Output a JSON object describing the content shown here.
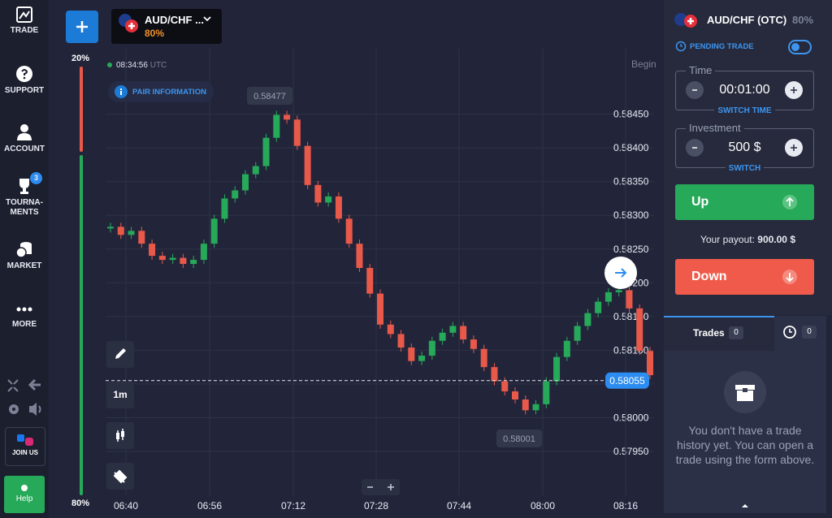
{
  "sidebar": {
    "items": [
      {
        "label": "TRADE"
      },
      {
        "label": "SUPPORT"
      },
      {
        "label": "ACCOUNT"
      },
      {
        "label": "TOURNA-MENTS",
        "badge": "3"
      },
      {
        "label": "MARKET"
      },
      {
        "label": "MORE"
      }
    ],
    "join": "JOIN US",
    "help": "Help"
  },
  "header": {
    "pair": "AUD/CHF ...",
    "payout": "80%",
    "time": "08:34:56",
    "timezone": "UTC",
    "pair_info": "PAIR INFORMATION",
    "begin": "Begin"
  },
  "sentiment": {
    "sell": "20%",
    "buy": "80%"
  },
  "chart_data": {
    "type": "candlestick",
    "series": [
      {
        "values": [
          0.58283,
          0.58271,
          0.58277,
          0.58258,
          0.5824,
          0.58234,
          0.58237,
          0.58228,
          0.58234,
          0.58258,
          0.58295,
          0.58325,
          0.58337,
          0.58361,
          0.58373,
          0.58415,
          0.58449,
          0.58442,
          0.58403,
          0.58345,
          0.58319,
          0.58328,
          0.58295,
          0.58258,
          0.58222,
          0.58184,
          0.58138,
          0.58124,
          0.58104,
          0.58084,
          0.58092,
          0.58114,
          0.58126,
          0.58136,
          0.58116,
          0.58102,
          0.58075,
          0.58054,
          0.58039,
          0.58027,
          0.58011,
          0.5802,
          0.58054,
          0.5809,
          0.58114,
          0.58136,
          0.58155,
          0.58172,
          0.58186,
          0.58189,
          0.58162,
          0.58099,
          0.58063
        ]
      }
    ],
    "up_color": "#27a95a",
    "down_color": "#e8594a",
    "ylim": [
      0.57885,
      0.58535
    ],
    "yticks": [
      {
        "value": 0.5845,
        "label": "0.58450"
      },
      {
        "value": 0.584,
        "label": "0.58400"
      },
      {
        "value": 0.5835,
        "label": "0.58350"
      },
      {
        "value": 0.583,
        "label": "0.58300"
      },
      {
        "value": 0.5825,
        "label": "0.58250"
      },
      {
        "value": 0.582,
        "label": "0.58200"
      },
      {
        "value": 0.5815,
        "label": "0.58150"
      },
      {
        "value": 0.581,
        "label": "0.58100"
      },
      {
        "value": 0.5805,
        "label": "0.58050"
      },
      {
        "value": 0.58,
        "label": "0.58000"
      },
      {
        "value": 0.5795,
        "label": "0.57950"
      }
    ],
    "xticks": [
      "06:40",
      "06:56",
      "07:12",
      "07:28",
      "07:44",
      "08:00",
      "08:16"
    ],
    "current_price": {
      "value": 0.58055,
      "label": "0.58055"
    },
    "high_label": "0.58477",
    "low_label": "0.58001",
    "interval": "1m",
    "grid": true
  },
  "trade_panel": {
    "pair": "AUD/CHF (OTC)",
    "payout": "80%",
    "pending": "PENDING TRADE",
    "time": {
      "label": "Time",
      "value": "00:01:00",
      "switch": "SWITCH TIME"
    },
    "investment": {
      "label": "Investment",
      "value": "500 $",
      "switch": "SWITCH"
    },
    "up": "Up",
    "payout_text": "Your payout:",
    "payout_value": "900.00 $",
    "down": "Down"
  },
  "trades": {
    "tab": "Trades",
    "count": "0",
    "pending_count": "0",
    "empty": "You don't have a trade history yet. You can open a trade using the form above."
  }
}
